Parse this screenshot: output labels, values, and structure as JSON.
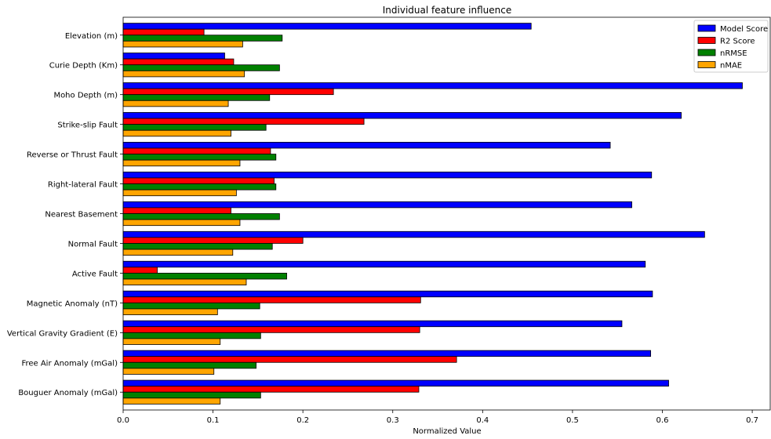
{
  "chart_data": {
    "type": "bar",
    "orientation": "horizontal",
    "title": "Individual feature influence",
    "xlabel": "Normalized Value",
    "ylabel": "",
    "xlim": [
      0,
      0.72
    ],
    "xticks": [
      "0.0",
      "0.1",
      "0.2",
      "0.3",
      "0.4",
      "0.5",
      "0.6",
      "0.7"
    ],
    "grid": false,
    "legend_position": "top-right",
    "categories": [
      "Elevation (m)",
      "Curie Depth (Km)",
      "Moho Depth (m)",
      "Strike-slip Fault",
      "Reverse or Thrust Fault",
      "Right-lateral Fault",
      "Nearest Basement",
      "Normal Fault",
      "Active Fault",
      "Magnetic Anomaly (nT)",
      "Vertical Gravity Gradient (E)",
      "Free Air Anomaly (mGal)",
      "Bouguer Anomaly (mGal)"
    ],
    "series": [
      {
        "name": "Model Score",
        "color": "#0000ff",
        "values": [
          0.454,
          0.113,
          0.689,
          0.621,
          0.542,
          0.588,
          0.566,
          0.647,
          0.581,
          0.589,
          0.555,
          0.587,
          0.607
        ]
      },
      {
        "name": "R2 Score",
        "color": "#ff0000",
        "values": [
          0.09,
          0.123,
          0.234,
          0.268,
          0.164,
          0.168,
          0.12,
          0.2,
          0.038,
          0.331,
          0.33,
          0.371,
          0.329
        ]
      },
      {
        "name": "nRMSE",
        "color": "#008000",
        "values": [
          0.177,
          0.174,
          0.163,
          0.159,
          0.17,
          0.17,
          0.174,
          0.166,
          0.182,
          0.152,
          0.153,
          0.148,
          0.153
        ]
      },
      {
        "name": "nMAE",
        "color": "#ffa500",
        "values": [
          0.133,
          0.135,
          0.117,
          0.12,
          0.13,
          0.126,
          0.13,
          0.122,
          0.137,
          0.105,
          0.108,
          0.101,
          0.108
        ]
      }
    ]
  }
}
